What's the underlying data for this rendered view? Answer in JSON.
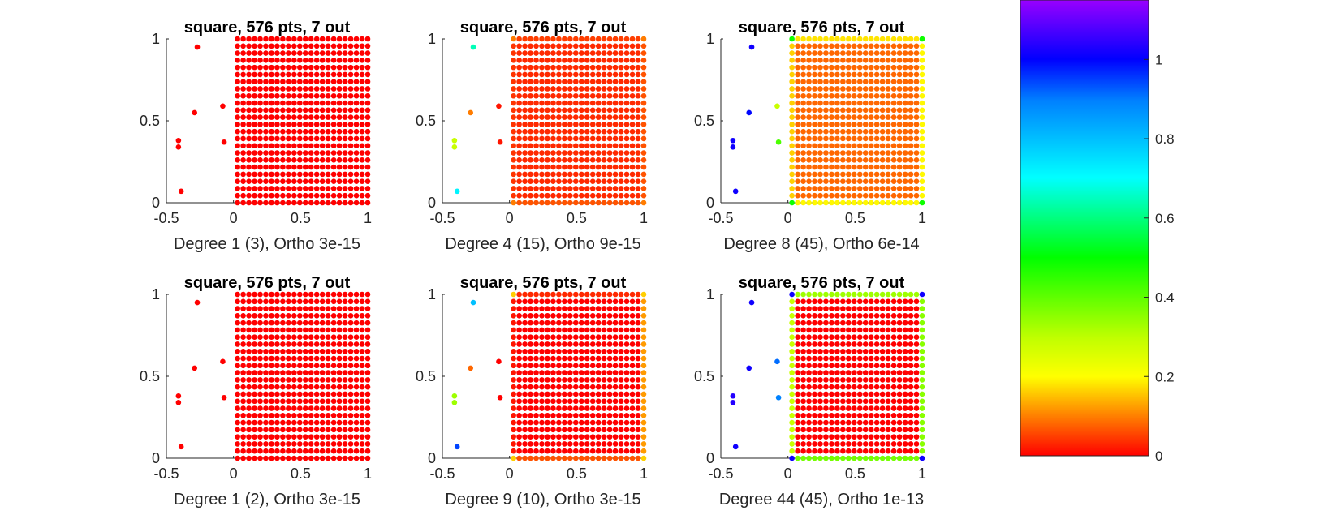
{
  "chart_data": {
    "type": "scatter",
    "point_cloud": {
      "description_text": "",
      "grid": {
        "x_start": 0.03,
        "x_end": 1.0,
        "y_start": 0.0,
        "y_end": 1.0,
        "n": 24
      },
      "outliers": [
        {
          "x": -0.27,
          "y": 0.95
        },
        {
          "x": -0.29,
          "y": 0.55
        },
        {
          "x": -0.08,
          "y": 0.59
        },
        {
          "x": -0.41,
          "y": 0.38
        },
        {
          "x": -0.41,
          "y": 0.34
        },
        {
          "x": -0.07,
          "y": 0.37
        },
        {
          "x": -0.39,
          "y": 0.07
        }
      ]
    },
    "axes": {
      "xlim": [
        -0.5,
        1
      ],
      "ylim": [
        0,
        1
      ],
      "xticks": [
        -0.5,
        0,
        0.5,
        1
      ],
      "yticks": [
        0,
        0.5,
        1
      ],
      "xtick_labels": [
        "-0.5",
        "0",
        "0.5",
        "1"
      ],
      "ytick_labels": [
        "0",
        "0.5",
        "1"
      ]
    },
    "colorbar": {
      "colormap": "hsv-like (red→yellow→green→cyan→blue→purple)",
      "range": [
        0,
        1.15
      ],
      "ticks": [
        0,
        0.2,
        0.4,
        0.6,
        0.8,
        1
      ],
      "tick_labels": [
        "0",
        "0.2",
        "0.4",
        "0.6",
        "0.8",
        "1"
      ]
    },
    "panels": [
      {
        "title": "square, 576 pts, 7 out",
        "xlabel": "Degree 1 (3), Ortho 3e-15",
        "outlier_values": [
          0.0,
          0.0,
          0.0,
          0.0,
          0.0,
          0.0,
          0.0
        ],
        "grid_value": {
          "base": 0.0,
          "left": 0.0,
          "right": 0.0,
          "top": 0.0,
          "bottom": 0.0,
          "corner": 0.0
        }
      },
      {
        "title": "square, 576 pts, 7 out",
        "xlabel": "Degree 4 (15), Ortho 9e-15",
        "outlier_values": [
          0.67,
          0.12,
          0.02,
          0.3,
          0.3,
          0.02,
          0.75
        ],
        "grid_value": {
          "base": 0.04,
          "left": 0.05,
          "right": 0.08,
          "top": 0.06,
          "bottom": 0.08,
          "corner": 0.12
        }
      },
      {
        "title": "square, 576 pts, 7 out",
        "xlabel": "Degree 8 (45), Ortho 6e-14",
        "outlier_values": [
          1.0,
          0.98,
          0.3,
          1.0,
          1.0,
          0.42,
          1.0
        ],
        "grid_value": {
          "base": 0.1,
          "left": 0.2,
          "right": 0.24,
          "top": 0.22,
          "bottom": 0.24,
          "corner": 0.48
        }
      },
      {
        "title": "square, 576 pts, 7 out",
        "xlabel": "Degree 1 (2), Ortho 3e-15",
        "outlier_values": [
          0.0,
          0.0,
          0.0,
          0.0,
          0.0,
          0.0,
          0.0
        ],
        "grid_value": {
          "base": 0.0,
          "left": 0.0,
          "right": 0.0,
          "top": 0.0,
          "bottom": 0.0,
          "corner": 0.0
        }
      },
      {
        "title": "square, 576 pts, 7 out",
        "xlabel": "Degree 9 (10), Ortho 3e-15",
        "outlier_values": [
          0.8,
          0.1,
          0.0,
          0.34,
          0.34,
          0.0,
          0.92
        ],
        "grid_value": {
          "base": 0.0,
          "left": 0.02,
          "right": 0.15,
          "top": 0.04,
          "bottom": 0.08,
          "corner": 0.2
        }
      },
      {
        "title": "square, 576 pts, 7 out",
        "xlabel": "Degree 44 (45), Ortho 1e-13",
        "outlier_values": [
          1.0,
          1.0,
          0.88,
          1.02,
          1.02,
          0.86,
          1.0
        ],
        "grid_value": {
          "base": 0.0,
          "left": 0.3,
          "right": 0.36,
          "top": 0.34,
          "bottom": 0.38,
          "corner": 1.0
        }
      }
    ]
  }
}
